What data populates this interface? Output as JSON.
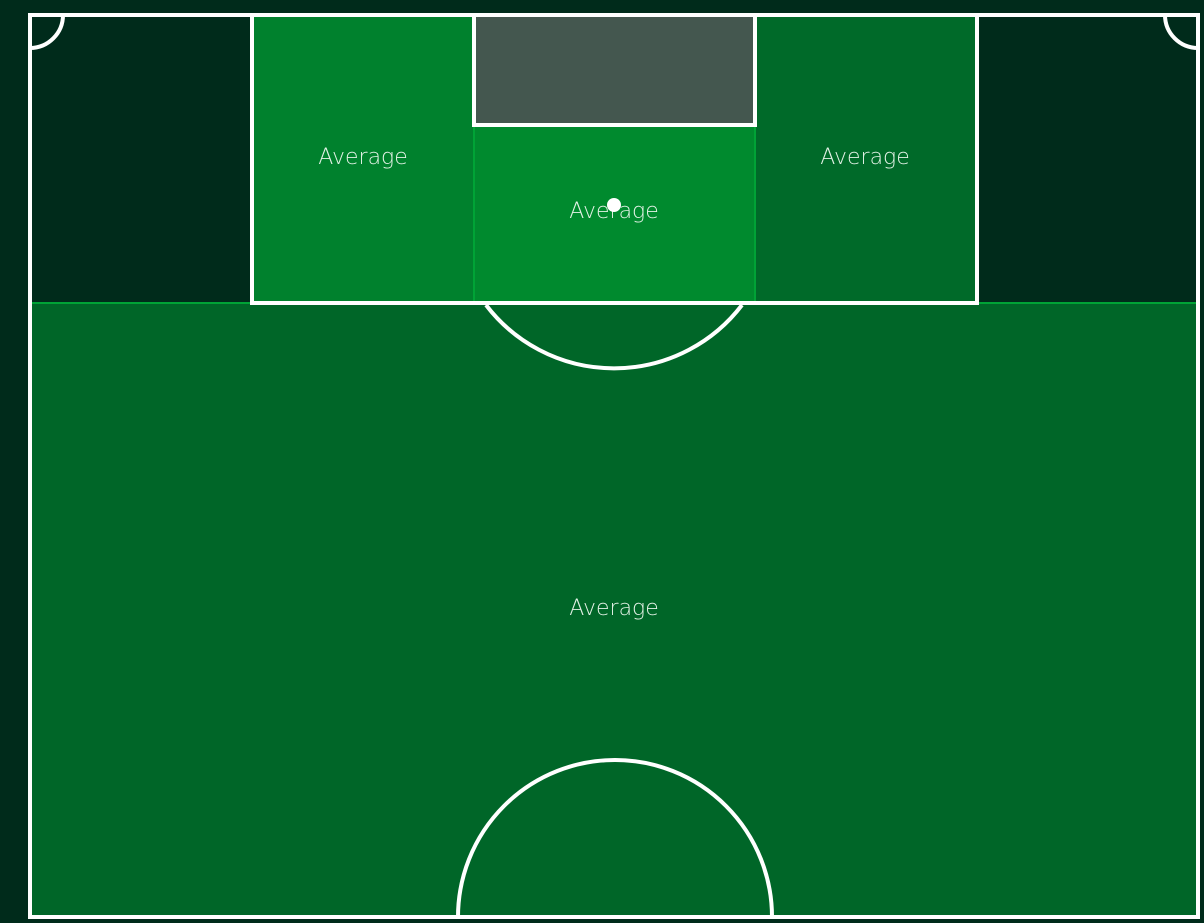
{
  "zones": [
    {
      "label": "Average"
    },
    {
      "label": "Average"
    },
    {
      "label": "Average"
    },
    {
      "label": "Average"
    }
  ]
}
